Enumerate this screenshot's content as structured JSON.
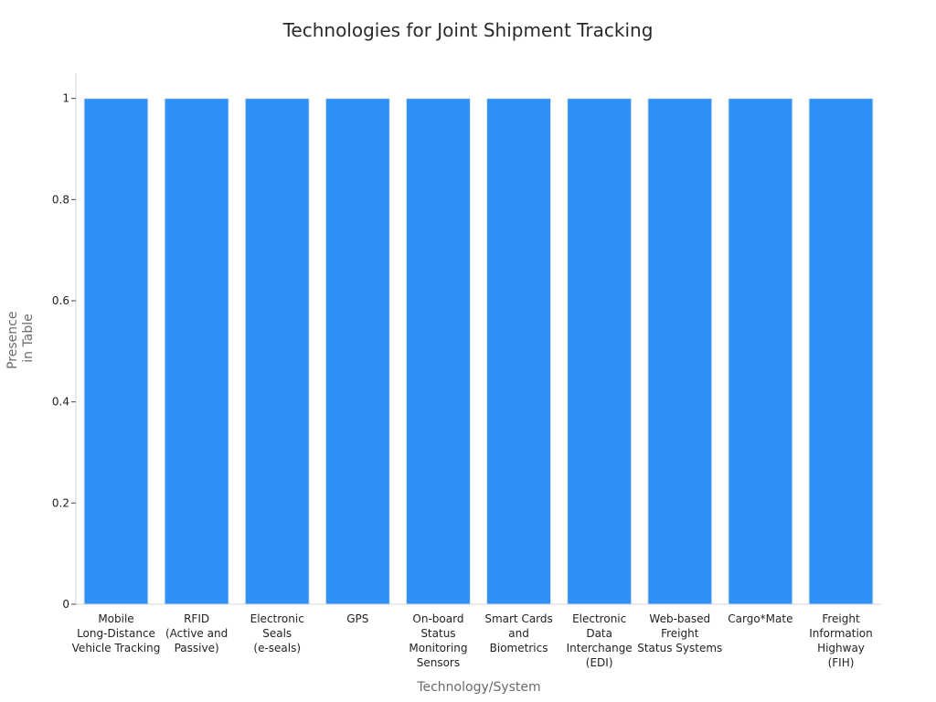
{
  "chart_data": {
    "type": "bar",
    "title": "Technologies for Joint Shipment Tracking",
    "xlabel": "Technology/System",
    "ylabel": "Presence in Table",
    "ylabel_lines": [
      "Presence",
      "in Table"
    ],
    "categories": [
      "Mobile Long-Distance Vehicle Tracking",
      "RFID (Active and Passive)",
      "Electronic Seals (e-seals)",
      "GPS",
      "On-board Status Monitoring Sensors",
      "Smart Cards and Biometrics",
      "Electronic Data Interchange (EDI)",
      "Web-based Freight Status Systems",
      "Cargo*Mate",
      "Freight Information Highway (FIH)"
    ],
    "category_label_lines": [
      [
        "Mobile",
        "Long-Distance",
        "Vehicle Tracking"
      ],
      [
        "RFID",
        "(Active and",
        "Passive)"
      ],
      [
        "Electronic",
        "Seals",
        "(e-seals)"
      ],
      [
        "GPS"
      ],
      [
        "On-board",
        "Status",
        "Monitoring",
        "Sensors"
      ],
      [
        "Smart Cards",
        "and",
        "Biometrics"
      ],
      [
        "Electronic",
        "Data",
        "Interchange",
        "(EDI)"
      ],
      [
        "Web-based",
        "Freight",
        "Status Systems"
      ],
      [
        "Cargo*Mate"
      ],
      [
        "Freight",
        "Information",
        "Highway",
        "(FIH)"
      ]
    ],
    "values": [
      1,
      1,
      1,
      1,
      1,
      1,
      1,
      1,
      1,
      1
    ],
    "ylim": [
      0,
      1.05
    ],
    "yticks": [
      0,
      0.2,
      0.4,
      0.6,
      0.8,
      1
    ],
    "ytick_labels": [
      "0",
      "0.2",
      "0.4",
      "0.6",
      "0.8",
      "1"
    ],
    "grid": false,
    "legend": "none",
    "colors": {
      "bar": "#2e91f7",
      "bar_edge": "#e6e6e6"
    }
  }
}
